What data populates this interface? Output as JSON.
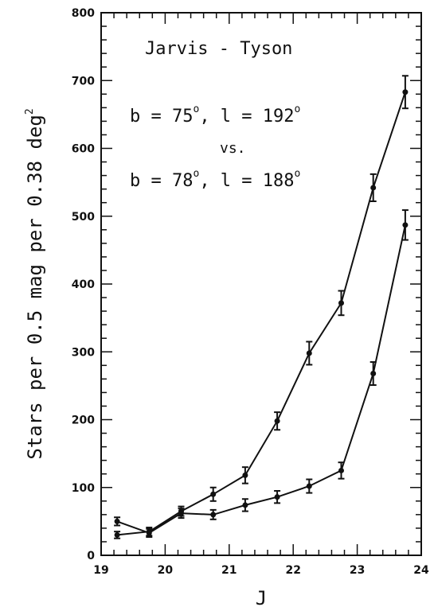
{
  "chart_data": {
    "type": "line",
    "title": "",
    "xlabel": "J",
    "ylabel": "Stars per 0.5 mag per 0.38 deg",
    "ylabel_sup": "2",
    "xlim": [
      19,
      24
    ],
    "ylim": [
      0,
      800
    ],
    "x_ticks": [
      "19",
      "20",
      "21",
      "22",
      "23",
      "24"
    ],
    "y_ticks": [
      "0",
      "100",
      "200",
      "300",
      "400",
      "500",
      "600",
      "700",
      "800"
    ],
    "grid": false,
    "annotations": {
      "title_text": "Jarvis - Tyson",
      "line1": {
        "b_label": "b = 75",
        "b_sup": "o",
        "l_label": ", l = 192",
        "l_sup": "o"
      },
      "vs": "vs.",
      "line2": {
        "b_label": "b = 78",
        "b_sup": "o",
        "l_label": ", l = 188",
        "l_sup": "o"
      }
    },
    "series": [
      {
        "x": [
          19.25,
          19.75,
          20.25,
          20.75,
          21.25,
          21.75,
          22.25,
          22.75,
          23.25,
          23.75
        ],
        "y": [
          30,
          35,
          65,
          90,
          118,
          198,
          298,
          372,
          542,
          683
        ],
        "err": [
          5,
          6,
          7,
          10,
          12,
          13,
          17,
          18,
          20,
          24
        ]
      },
      {
        "x": [
          19.25,
          19.75,
          20.25,
          20.75,
          21.25,
          21.75,
          22.25,
          22.75,
          23.25,
          23.75
        ],
        "y": [
          50,
          33,
          62,
          60,
          74,
          86,
          102,
          125,
          268,
          487
        ],
        "err": [
          6,
          6,
          7,
          7,
          9,
          9,
          10,
          12,
          17,
          22
        ]
      }
    ]
  }
}
